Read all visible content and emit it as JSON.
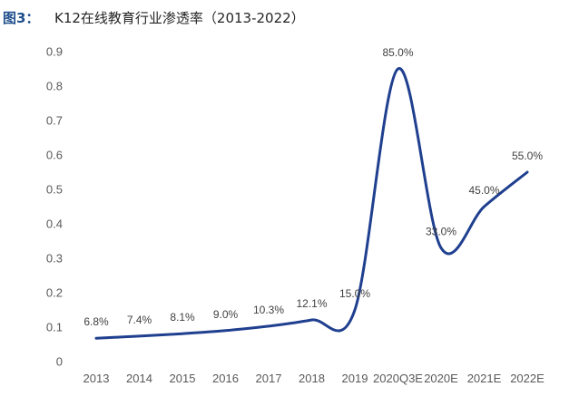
{
  "header": {
    "prefix": "图3：",
    "title": "K12在线教育行业渗透率（2013-2022）"
  },
  "chart_data": {
    "type": "line",
    "title": "K12在线教育行业渗透率（2013-2022）",
    "xlabel": "",
    "ylabel": "",
    "categories": [
      "2013",
      "2014",
      "2015",
      "2016",
      "2017",
      "2018",
      "2019",
      "2020Q3E",
      "2020E",
      "2021E",
      "2022E"
    ],
    "x_tick_labels": [
      "2013",
      "2014",
      "2015",
      "2016",
      "2017",
      "2018",
      "2019",
      "2020Q3E",
      "2020E",
      "2021E",
      "2022E"
    ],
    "series": [
      {
        "values": [
          0.068,
          0.074,
          0.081,
          0.09,
          0.103,
          0.121,
          0.15,
          0.85,
          0.33,
          0.45,
          0.55
        ],
        "labels": [
          "6.8%",
          "7.4%",
          "8.1%",
          "9.0%",
          "10.3%",
          "12.1%",
          "15.0%",
          "85.0%",
          "33.0%",
          "45.0%",
          "55.0%"
        ],
        "color": "#1f3f8f"
      }
    ],
    "ylim": [
      0,
      0.9
    ],
    "y_ticks": [
      0,
      0.1,
      0.2,
      0.3,
      0.4,
      0.5,
      0.6,
      0.7,
      0.8,
      0.9
    ],
    "y_tick_labels": [
      "0",
      "0.1",
      "0.2",
      "0.3",
      "0.4",
      "0.5",
      "0.6",
      "0.7",
      "0.8",
      "0.9"
    ],
    "grid": false,
    "legend": "none",
    "smooth": true
  }
}
